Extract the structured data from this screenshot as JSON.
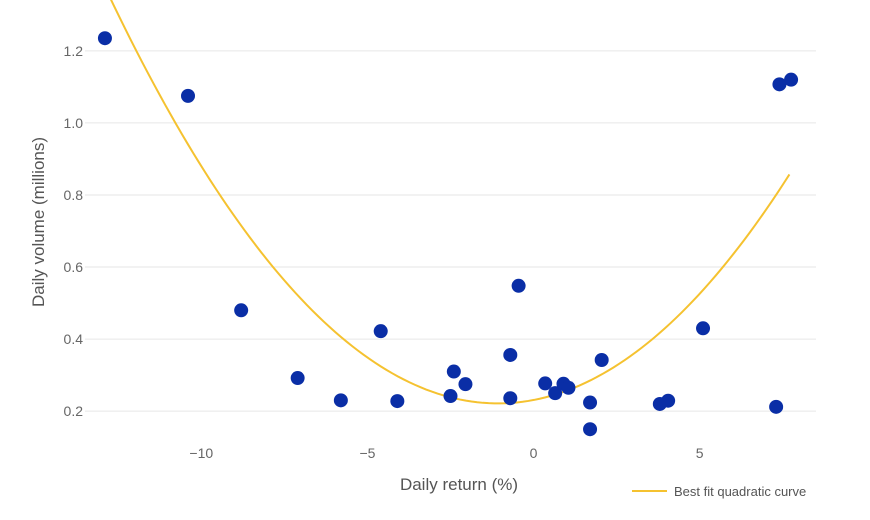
{
  "chart_data": {
    "type": "scatter",
    "xlabel": "Daily return (%)",
    "ylabel": "Daily volume (millions)",
    "xlim": [
      -13.5,
      8.5
    ],
    "ylim": [
      0.12,
      1.28
    ],
    "x_ticks": [
      -10,
      -5,
      0,
      5
    ],
    "x_tick_labels": [
      "−10",
      "−5",
      "0",
      "5"
    ],
    "y_ticks": [
      0.2,
      0.4,
      0.6,
      0.8,
      1.0,
      1.2
    ],
    "y_tick_labels": [
      "0.2",
      "0.4",
      "0.6",
      "0.8",
      "1.0",
      "1.2"
    ],
    "grid": "horizontal",
    "legend_position": "bottom-right",
    "series": [
      {
        "type": "scatter",
        "color": "#0a2ea6",
        "points": [
          {
            "x": -12.9,
            "y": 1.235
          },
          {
            "x": -10.4,
            "y": 1.075
          },
          {
            "x": -8.8,
            "y": 0.48
          },
          {
            "x": -7.1,
            "y": 0.292
          },
          {
            "x": -5.8,
            "y": 0.23
          },
          {
            "x": -4.6,
            "y": 0.422
          },
          {
            "x": -4.1,
            "y": 0.228
          },
          {
            "x": -2.5,
            "y": 0.242
          },
          {
            "x": -2.4,
            "y": 0.31
          },
          {
            "x": -2.05,
            "y": 0.275
          },
          {
            "x": -0.7,
            "y": 0.356
          },
          {
            "x": -0.7,
            "y": 0.236
          },
          {
            "x": -0.45,
            "y": 0.548
          },
          {
            "x": 0.35,
            "y": 0.277
          },
          {
            "x": 0.65,
            "y": 0.25
          },
          {
            "x": 0.9,
            "y": 0.276
          },
          {
            "x": 1.05,
            "y": 0.265
          },
          {
            "x": 1.7,
            "y": 0.15
          },
          {
            "x": 1.7,
            "y": 0.224
          },
          {
            "x": 2.05,
            "y": 0.342
          },
          {
            "x": 3.8,
            "y": 0.22
          },
          {
            "x": 4.05,
            "y": 0.229
          },
          {
            "x": 5.1,
            "y": 0.43
          },
          {
            "x": 7.3,
            "y": 0.212
          },
          {
            "x": 7.4,
            "y": 1.107
          },
          {
            "x": 7.75,
            "y": 1.12
          }
        ]
      },
      {
        "type": "line",
        "name": "Best fit quadratic curve",
        "color": "#f5c230",
        "fit": "quadratic",
        "x_range": [
          -12.8,
          7.7
        ],
        "coefficients": {
          "a": 0.00826,
          "b": 0.0177,
          "c": 0.231
        }
      }
    ]
  }
}
